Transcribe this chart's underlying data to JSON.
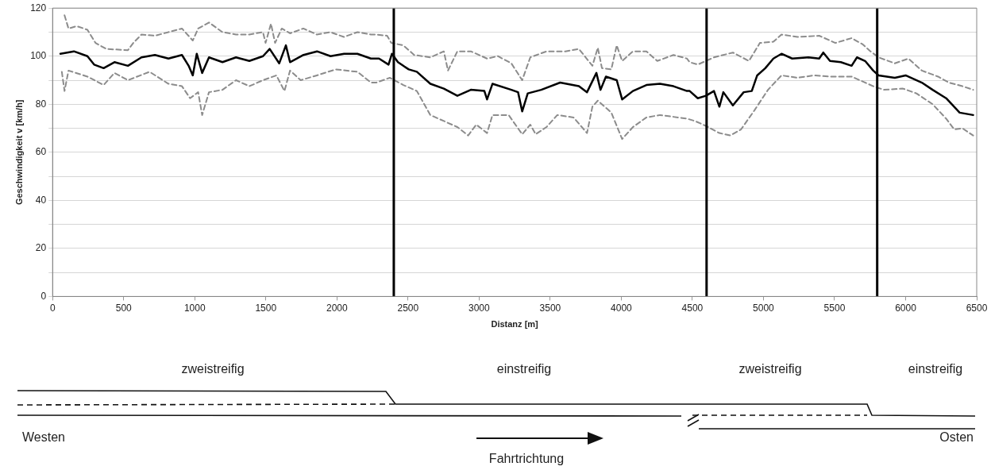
{
  "chart_data": {
    "type": "line",
    "xlabel": "Distanz [m]",
    "ylabel": "Geschwindigkeit v [km/h]",
    "xlim": [
      0,
      6500
    ],
    "xticks": [
      0,
      500,
      1000,
      1500,
      2000,
      2500,
      3000,
      3500,
      4000,
      4500,
      5000,
      5500,
      6000,
      6500
    ],
    "ylim": [
      0,
      120
    ],
    "yticks": [
      0,
      {
        "value": 10,
        "label": null
      },
      20,
      {
        "value": 30,
        "label": null
      },
      40,
      {
        "value": 50,
        "label": null
      },
      60,
      {
        "value": 70,
        "label": null
      },
      80,
      {
        "value": 90,
        "label": null
      },
      100,
      {
        "value": 110,
        "label": null
      },
      120
    ],
    "grid": "y",
    "legend": false,
    "marker": "none",
    "series": [
      {
        "color": "#000000",
        "line_style": "solid",
        "x": [
          55,
          150,
          245,
          292,
          359,
          435,
          530,
          625,
          720,
          815,
          910,
          957,
          986,
          1014,
          1052,
          1100,
          1195,
          1290,
          1384,
          1480,
          1527,
          1594,
          1641,
          1670,
          1765,
          1860,
          1955,
          2050,
          2144,
          2239,
          2296,
          2363,
          2387,
          2429,
          2505,
          2562,
          2657,
          2752,
          2847,
          2942,
          3037,
          3056,
          3094,
          3227,
          3274,
          3303,
          3342,
          3437,
          3570,
          3702,
          3759,
          3825,
          3854,
          3892,
          3968,
          4006,
          4082,
          4177,
          4272,
          4367,
          4462,
          4481,
          4538,
          4595,
          4652,
          4690,
          4718,
          4785,
          4861,
          4918,
          4956,
          5013,
          5070,
          5127,
          5202,
          5316,
          5392,
          5421,
          5468,
          5544,
          5620,
          5658,
          5715,
          5772,
          5810,
          5924,
          6000,
          6114,
          6190,
          6285,
          6380,
          6475
        ],
        "values": [
          101,
          102,
          100,
          96.5,
          95,
          97.5,
          96,
          99.5,
          100.5,
          99,
          100.5,
          96,
          92,
          101,
          93,
          99.5,
          97.5,
          99.5,
          98,
          100,
          103,
          97,
          104.5,
          97.5,
          100.5,
          102,
          100,
          101,
          101,
          99,
          99,
          96.5,
          101,
          97.5,
          94.5,
          93.5,
          88.5,
          86.5,
          83.5,
          86,
          85.5,
          82,
          88.5,
          86,
          85,
          77,
          84.5,
          86,
          89,
          87.5,
          85,
          93,
          86,
          91.5,
          90,
          82,
          85.5,
          88,
          88.5,
          87.5,
          85.5,
          85.5,
          82.5,
          83.5,
          85.5,
          79,
          85,
          79.5,
          85,
          85.5,
          92,
          95,
          99,
          101,
          99,
          99.5,
          99,
          101.5,
          98,
          97.5,
          96,
          99.5,
          98,
          94,
          92,
          91,
          92,
          89,
          86,
          82.5,
          76.5,
          75.5
        ]
      },
      {
        "color": "#8c8c8c",
        "line_style": "dashed",
        "x": [
          84,
          112,
          169,
          245,
          302,
          378,
          530,
          568,
          625,
          720,
          815,
          910,
          986,
          1024,
          1100,
          1195,
          1290,
          1384,
          1480,
          1498,
          1536,
          1565,
          1612,
          1670,
          1764,
          1859,
          1954,
          2049,
          2144,
          2239,
          2277,
          2353,
          2382,
          2467,
          2543,
          2657,
          2752,
          2781,
          2847,
          2942,
          3056,
          3132,
          3227,
          3303,
          3360,
          3474,
          3607,
          3702,
          3797,
          3835,
          3864,
          3930,
          3968,
          4006,
          4082,
          4177,
          4253,
          4367,
          4462,
          4481,
          4538,
          4652,
          4785,
          4898,
          4975,
          5070,
          5127,
          5240,
          5392,
          5506,
          5620,
          5696,
          5753,
          5810,
          5924,
          6019,
          6114,
          6228,
          6304,
          6399,
          6475
        ],
        "values": [
          117,
          111.5,
          112.5,
          111,
          105.5,
          103,
          102.5,
          105.5,
          109,
          108.5,
          110,
          111.5,
          106.5,
          111.5,
          114,
          110,
          109,
          109,
          110,
          105.5,
          113.5,
          105.5,
          111.5,
          109.5,
          111.5,
          109,
          110,
          108,
          110,
          109,
          109,
          108.5,
          105.5,
          104.5,
          100.5,
          99.5,
          102,
          94,
          102,
          102,
          99,
          100,
          97,
          90,
          99.5,
          102,
          102,
          103,
          96,
          103.5,
          95,
          94.5,
          104.5,
          98,
          102,
          102,
          98,
          100.5,
          99,
          97.5,
          96.5,
          99.5,
          101.5,
          98,
          105.5,
          106,
          109,
          108,
          108.5,
          105.5,
          107.5,
          105,
          102,
          99.5,
          97,
          99,
          94,
          91.5,
          89,
          87.5,
          86
        ]
      },
      {
        "color": "#8c8c8c",
        "line_style": "dashed",
        "x": [
          65,
          84,
          112,
          245,
          359,
          435,
          530,
          682,
          815,
          910,
          967,
          1024,
          1052,
          1100,
          1195,
          1290,
          1384,
          1480,
          1574,
          1631,
          1670,
          1745,
          1859,
          1992,
          2144,
          2239,
          2277,
          2372,
          2467,
          2562,
          2657,
          2752,
          2847,
          2923,
          2980,
          3056,
          3094,
          3208,
          3303,
          3360,
          3398,
          3474,
          3550,
          3664,
          3759,
          3797,
          3835,
          3930,
          4006,
          4082,
          4177,
          4272,
          4462,
          4519,
          4595,
          4690,
          4766,
          4842,
          4937,
          5032,
          5127,
          5240,
          5354,
          5468,
          5620,
          5772,
          5848,
          5981,
          6076,
          6190,
          6285,
          6342,
          6399,
          6475
        ],
        "values": [
          93.5,
          85.5,
          94,
          91.5,
          88,
          93,
          90,
          93.5,
          88.5,
          87.5,
          82.5,
          85,
          75.5,
          85,
          86,
          90,
          87.5,
          90,
          92,
          85.5,
          94,
          90,
          92,
          94.5,
          93.5,
          89,
          89,
          91,
          88,
          85.5,
          75.5,
          73,
          70.5,
          67,
          71.5,
          68,
          75.5,
          75.5,
          67.5,
          71.5,
          67.5,
          70.5,
          75.5,
          74.5,
          68,
          79,
          81.5,
          76.5,
          65.5,
          70.5,
          74.5,
          75.5,
          74,
          73,
          71,
          68,
          67,
          69.5,
          77.5,
          86,
          92,
          91,
          92,
          91.5,
          91.5,
          87.5,
          86,
          86.5,
          84.5,
          80,
          74,
          69.5,
          70,
          67
        ]
      }
    ],
    "ref_lines": [
      {
        "axis": "x",
        "value": 2400,
        "color": "#000000"
      },
      {
        "axis": "x",
        "value": 4600,
        "color": "#000000"
      },
      {
        "axis": "x",
        "value": 5800,
        "color": "#000000"
      }
    ],
    "annotations": [
      "zweistreifig",
      "einstreifig",
      "zweistreifig",
      "einstreifig",
      "Westen",
      "Fahrtrichtung",
      "Osten"
    ]
  }
}
